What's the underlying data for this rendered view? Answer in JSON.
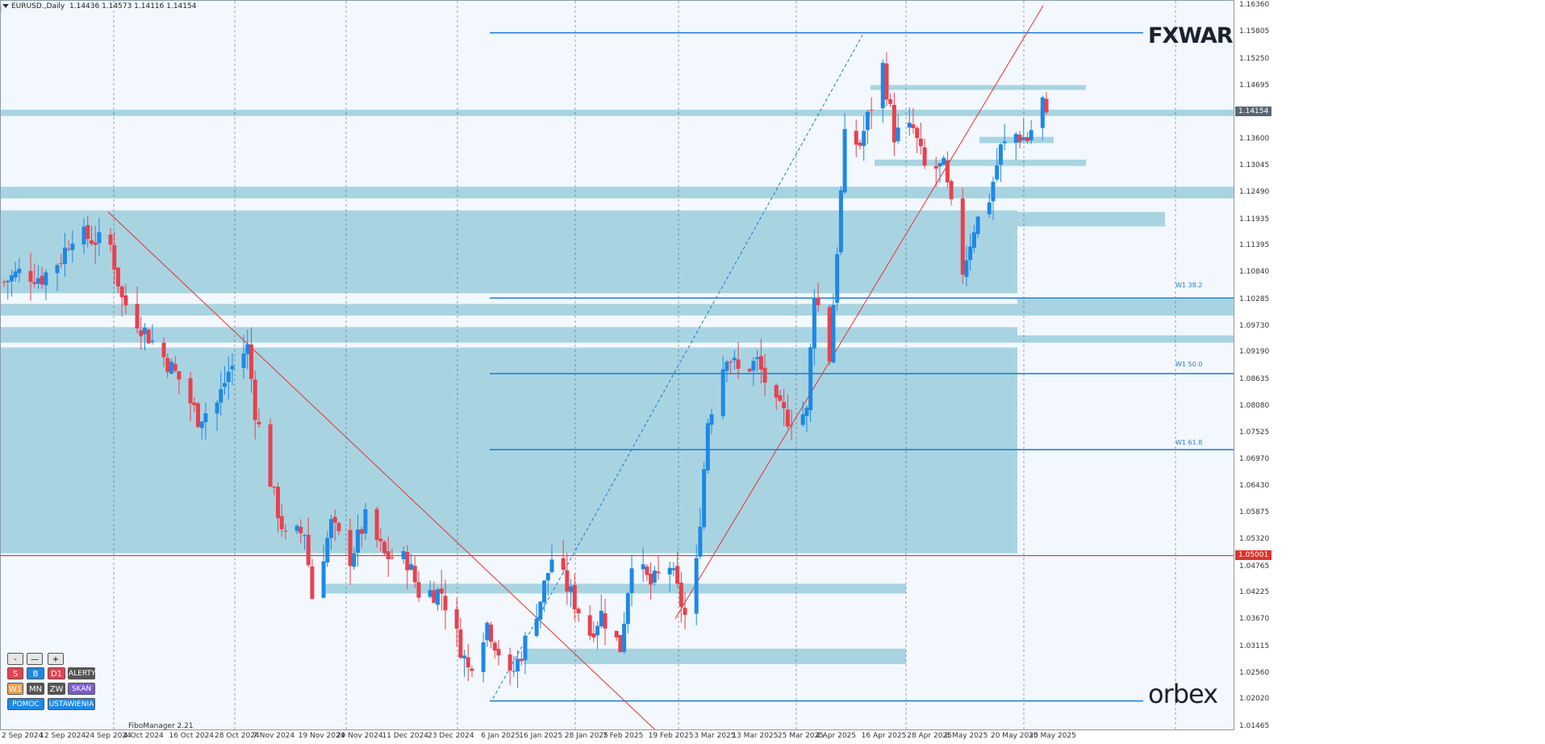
{
  "chart_header": {
    "symbol": "EURUSD.,Daily",
    "ohlc": "1.14436 1.14573 1.14116 1.14154"
  },
  "y_axis": {
    "labels": [
      "1.16360",
      "1.15805",
      "1.15250",
      "1.14695",
      "1.14154",
      "1.13600",
      "1.13045",
      "1.12490",
      "1.11935",
      "1.11395",
      "1.10840",
      "1.10285",
      "1.09730",
      "1.09190",
      "1.08635",
      "1.08080",
      "1.07525",
      "1.06970",
      "1.06430",
      "1.05875",
      "1.05320",
      "1.05001",
      "1.04765",
      "1.04225",
      "1.03670",
      "1.03115",
      "1.02560",
      "1.02020",
      "1.01465"
    ],
    "current_price": "1.14154",
    "red_level_price": "1.05001",
    "current_price_color": "#5a6672",
    "red_level_color": "#e0312b"
  },
  "x_axis": {
    "labels": [
      "2 Sep 2024",
      "12 Sep 2024",
      "24 Sep 2024",
      "4 Oct 2024",
      "16 Oct 2024",
      "28 Oct 2024",
      "7 Nov 2024",
      "19 Nov 2024",
      "29 Nov 2024",
      "11 Dec 2024",
      "23 Dec 2024",
      "6 Jan 2025",
      "16 Jan 2025",
      "28 Jan 2025",
      "7 Feb 2025",
      "19 Feb 2025",
      "3 Mar 2025",
      "13 Mar 2025",
      "25 Mar 2025",
      "4 Apr 2025",
      "16 Apr 2025",
      "28 Apr 2025",
      "8 May 2025",
      "20 May 2025",
      "30 May 2025"
    ]
  },
  "fib_labels": [
    "W1 38.2",
    "W1 50.0",
    "W1 61.8"
  ],
  "brands": {
    "top": "FXWARE",
    "bottom": "orbex"
  },
  "panel": {
    "row1": [
      "-",
      "—",
      "+"
    ],
    "row2": [
      "S",
      "B",
      "D1",
      "ALERTY"
    ],
    "row3": [
      "W1",
      "MN",
      "ZW",
      "SKAN"
    ],
    "row4": [
      "POMOC",
      "USTAWIENIA"
    ],
    "caption": "FiboManager 2.21"
  },
  "colors": {
    "bull": "#1e88e5",
    "bear": "#e8414f",
    "zone": "#a8d4e2",
    "fib_line": "#1a78d6",
    "trend_line": "#e53030"
  },
  "chart_data": {
    "type": "candlestick",
    "symbol": "EURUSD",
    "timeframe": "Daily",
    "ylim": [
      1.0146,
      1.1636
    ],
    "x_range": [
      "2 Sep 2024",
      "3 Jun 2025"
    ],
    "last_bar": {
      "open": 1.14436,
      "high": 1.14573,
      "low": 1.14116,
      "close": 1.14154
    },
    "horizontal_levels": [
      1.05001
    ],
    "fib_levels": [
      {
        "name": "W1 38.2",
        "price": 1.1032
      },
      {
        "name": "W1 50.0",
        "price": 1.0876
      },
      {
        "name": "W1 61.8",
        "price": 1.0719
      }
    ],
    "close_path": [
      [
        "2 Sep 2024",
        1.1065
      ],
      [
        "6 Sep 2024",
        1.1085
      ],
      [
        "12 Sep 2024",
        1.1075
      ],
      [
        "17 Sep 2024",
        1.1115
      ],
      [
        "20 Sep 2024",
        1.1165
      ],
      [
        "25 Sep 2024",
        1.1155
      ],
      [
        "30 Sep 2024",
        1.114
      ],
      [
        "3 Oct 2024",
        1.103
      ],
      [
        "8 Oct 2024",
        1.0975
      ],
      [
        "14 Oct 2024",
        1.091
      ],
      [
        "18 Oct 2024",
        1.0865
      ],
      [
        "23 Oct 2024",
        1.0785
      ],
      [
        "28 Oct 2024",
        1.0815
      ],
      [
        "31 Oct 2024",
        1.088
      ],
      [
        "5 Nov 2024",
        1.093
      ],
      [
        "7 Nov 2024",
        1.08
      ],
      [
        "12 Nov 2024",
        1.062
      ],
      [
        "15 Nov 2024",
        1.0535
      ],
      [
        "20 Nov 2024",
        1.055
      ],
      [
        "22 Nov 2024",
        1.0415
      ],
      [
        "27 Nov 2024",
        1.0565
      ],
      [
        "2 Dec 2024",
        1.0495
      ],
      [
        "6 Dec 2024",
        1.0575
      ],
      [
        "11 Dec 2024",
        1.05
      ],
      [
        "17 Dec 2024",
        1.049
      ],
      [
        "20 Dec 2024",
        1.0425
      ],
      [
        "26 Dec 2024",
        1.0425
      ],
      [
        "2 Jan 2025",
        1.0265
      ],
      [
        "7 Jan 2025",
        1.036
      ],
      [
        "13 Jan 2025",
        1.0245
      ],
      [
        "16 Jan 2025",
        1.03
      ],
      [
        "21 Jan 2025",
        1.041
      ],
      [
        "24 Jan 2025",
        1.0495
      ],
      [
        "29 Jan 2025",
        1.042
      ],
      [
        "3 Feb 2025",
        1.034
      ],
      [
        "6 Feb 2025",
        1.038
      ],
      [
        "11 Feb 2025",
        1.031
      ],
      [
        "14 Feb 2025",
        1.0495
      ],
      [
        "19 Feb 2025",
        1.044
      ],
      [
        "24 Feb 2025",
        1.048
      ],
      [
        "28 Feb 2025",
        1.0375
      ],
      [
        "3 Mar 2025",
        1.048
      ],
      [
        "6 Mar 2025",
        1.078
      ],
      [
        "11 Mar 2025",
        1.092
      ],
      [
        "14 Mar 2025",
        1.088
      ],
      [
        "19 Mar 2025",
        1.09
      ],
      [
        "24 Mar 2025",
        1.0805
      ],
      [
        "27 Mar 2025",
        1.0785
      ],
      [
        "1 Apr 2025",
        1.0795
      ],
      [
        "3 Apr 2025",
        1.105
      ],
      [
        "7 Apr 2025",
        1.091
      ],
      [
        "11 Apr 2025",
        1.136
      ],
      [
        "15 Apr 2025",
        1.135
      ],
      [
        "21 Apr 2025",
        1.151
      ],
      [
        "24 Apr 2025",
        1.137
      ],
      [
        "29 Apr 2025",
        1.138
      ],
      [
        "2 May 2025",
        1.13
      ],
      [
        "7 May 2025",
        1.13
      ],
      [
        "12 May 2025",
        1.109
      ],
      [
        "15 May 2025",
        1.118
      ],
      [
        "19 May 2025",
        1.124
      ],
      [
        "22 May 2025",
        1.134
      ],
      [
        "26 May 2025",
        1.137
      ],
      [
        "29 May 2025",
        1.136
      ],
      [
        "2 Jun 2025",
        1.144
      ],
      [
        "3 Jun 2025",
        1.1415
      ]
    ]
  }
}
